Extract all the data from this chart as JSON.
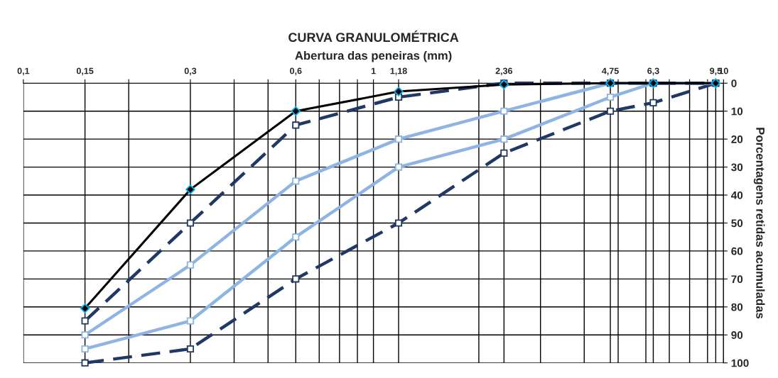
{
  "chart_data": {
    "type": "line",
    "title": "CURVA GRANULOMÉTRICA",
    "xlabel": "Abertura das peneiras (mm)",
    "ylabel": "Porcentagens retidas acumuladas",
    "log": "x",
    "xlim": [
      0.1,
      10
    ],
    "xticks": [
      {
        "value": 0.1,
        "label": "0,1"
      },
      {
        "value": 0.15,
        "label": "0,15"
      },
      {
        "value": 0.2,
        "label": null
      },
      {
        "value": 0.3,
        "label": "0,3"
      },
      {
        "value": 0.4,
        "label": null
      },
      {
        "value": 0.5,
        "label": null
      },
      {
        "value": 0.6,
        "label": "0,6"
      },
      {
        "value": 0.7,
        "label": null
      },
      {
        "value": 0.8,
        "label": null
      },
      {
        "value": 0.9,
        "label": null
      },
      1,
      {
        "value": 1.18,
        "label": "1,18"
      },
      {
        "value": 2,
        "label": null
      },
      {
        "value": 2.36,
        "label": "2,36"
      },
      {
        "value": 3,
        "label": null
      },
      {
        "value": 4,
        "label": null
      },
      {
        "value": 4.75,
        "label": "4,75"
      },
      {
        "value": 5,
        "label": null
      },
      {
        "value": 6,
        "label": null
      },
      {
        "value": 6.3,
        "label": "6,3"
      },
      {
        "value": 7,
        "label": null
      },
      {
        "value": 8,
        "label": null
      },
      {
        "value": 9,
        "label": null
      },
      {
        "value": 9.5,
        "label": "9,5"
      },
      10
    ],
    "ylim": [
      100,
      0
    ],
    "yticks": [
      0,
      10,
      20,
      30,
      40,
      50,
      60,
      70,
      80,
      90,
      100
    ],
    "grid": true,
    "x": [
      0.15,
      0.3,
      0.6,
      1.18,
      2.36,
      4.75,
      6.3,
      9.5
    ],
    "series": [
      {
        "color": "#1f3864",
        "line_style": "dashed",
        "marker": "square",
        "values": [
          100,
          95,
          70,
          50,
          25,
          10,
          7,
          0
        ]
      },
      {
        "color": "#8eb4e3",
        "line_style": "solid",
        "marker": "square",
        "values": [
          95,
          85,
          55,
          30,
          20,
          5,
          0,
          0
        ]
      },
      {
        "color": "#8eb4e3",
        "line_style": "solid",
        "marker": "square",
        "values": [
          90,
          65,
          35,
          20,
          10,
          0,
          0,
          0
        ]
      },
      {
        "color": "#1f3864",
        "line_style": "dashed",
        "marker": "square",
        "values": [
          85,
          50,
          15,
          5,
          0,
          0,
          0,
          0
        ]
      },
      {
        "color": "#000000",
        "line_style": "solid",
        "marker": "diamond",
        "values": [
          80.5,
          38,
          10,
          3,
          0.5,
          0,
          0,
          0
        ]
      }
    ]
  }
}
